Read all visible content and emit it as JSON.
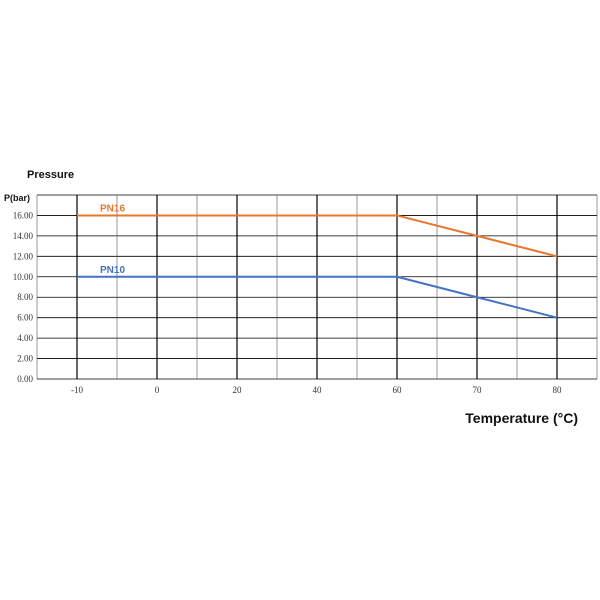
{
  "chart_data": {
    "type": "line",
    "title": "Pressure",
    "ylabel": "P(bar)",
    "xlabel": "Temperature (°C)",
    "x_tick_labels": [
      "-10",
      "0",
      "20",
      "40",
      "60",
      "70",
      "80"
    ],
    "y_tick_labels": [
      "0.00",
      "2.00",
      "4.00",
      "6.00",
      "8.00",
      "10.00",
      "12.00",
      "14.00",
      "16.00"
    ],
    "ylim": [
      0,
      18
    ],
    "grid": true,
    "series": [
      {
        "name": "PN16",
        "color": "#e8772e",
        "points": [
          {
            "x": "-10",
            "y": 16
          },
          {
            "x": "60",
            "y": 16
          },
          {
            "x": "70",
            "y": 14
          },
          {
            "x": "80",
            "y": 12
          }
        ]
      },
      {
        "name": "PN10",
        "color": "#4472c4",
        "points": [
          {
            "x": "-10",
            "y": 10
          },
          {
            "x": "60",
            "y": 10
          },
          {
            "x": "70",
            "y": 8
          },
          {
            "x": "80",
            "y": 6
          }
        ]
      }
    ]
  }
}
